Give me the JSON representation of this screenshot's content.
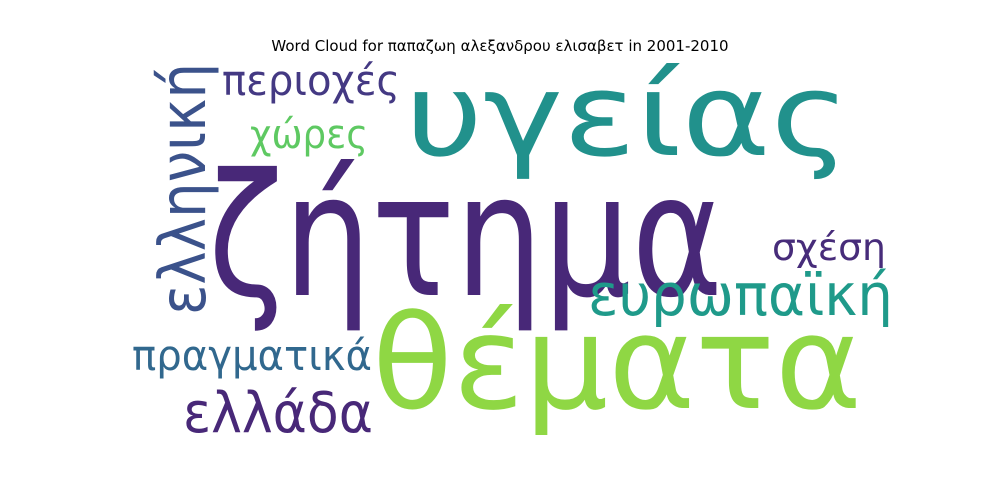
{
  "chart_data": {
    "type": "wordcloud",
    "title": "Word Cloud for παπαζωη αλεξανδρου ελισαβετ in 2001-2010",
    "words": [
      {
        "text": "ζήτημα",
        "color": "#482878"
      },
      {
        "text": "θέματα",
        "color": "#8fd744"
      },
      {
        "text": "υγείας",
        "color": "#21918c"
      },
      {
        "text": "ελληνική",
        "color": "#3b528b"
      },
      {
        "text": "ευρωπαϊκή",
        "color": "#1f9a8a"
      },
      {
        "text": "πραγματικά",
        "color": "#31688e"
      },
      {
        "text": "ελλάδα",
        "color": "#482878"
      },
      {
        "text": "περιοχές",
        "color": "#443983"
      },
      {
        "text": "χώρες",
        "color": "#5ec962"
      },
      {
        "text": "σχέση",
        "color": "#472c7a"
      }
    ]
  }
}
